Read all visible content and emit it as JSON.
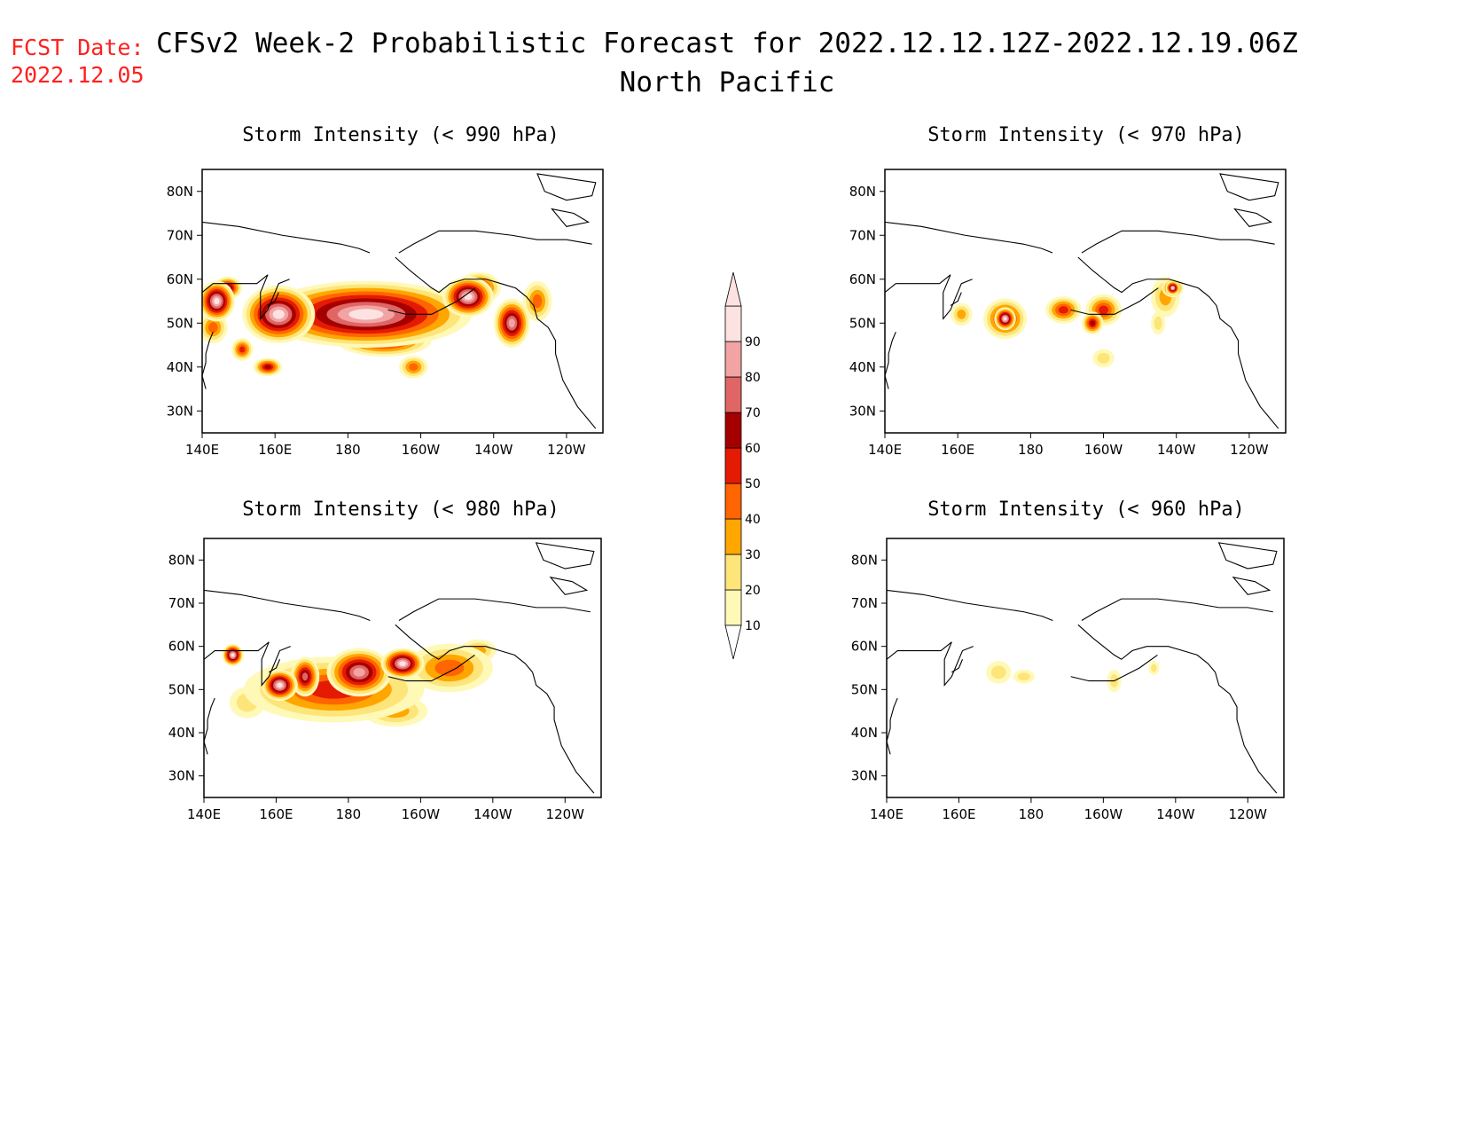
{
  "header": {
    "fcst_date_label": "FCST Date:",
    "fcst_date_value": "2022.12.05",
    "title": "CFSv2 Week-2 Probabilistic Forecast for 2022.12.12.12Z-2022.12.19.06Z",
    "subtitle": "North Pacific",
    "fcst_color": "#ff2020"
  },
  "map_extent": {
    "lon_range": [
      140,
      250
    ],
    "lat_range": [
      25,
      85
    ]
  },
  "axes": {
    "lon_ticks": [
      {
        "lon": 140,
        "label": "140E"
      },
      {
        "lon": 160,
        "label": "160E"
      },
      {
        "lon": 180,
        "label": "180"
      },
      {
        "lon": 200,
        "label": "160W"
      },
      {
        "lon": 220,
        "label": "140W"
      },
      {
        "lon": 240,
        "label": "120W"
      }
    ],
    "lat_ticks": [
      {
        "lat": 30,
        "label": "30N"
      },
      {
        "lat": 40,
        "label": "40N"
      },
      {
        "lat": 50,
        "label": "50N"
      },
      {
        "lat": 60,
        "label": "60N"
      },
      {
        "lat": 70,
        "label": "70N"
      },
      {
        "lat": 80,
        "label": "80N"
      }
    ]
  },
  "colorbar": {
    "levels": [
      {
        "value": "10",
        "color": "#fff9b8"
      },
      {
        "value": "20",
        "color": "#fde57a"
      },
      {
        "value": "30",
        "color": "#ffa600"
      },
      {
        "value": "40",
        "color": "#ff6500"
      },
      {
        "value": "50",
        "color": "#e41a02"
      },
      {
        "value": "60",
        "color": "#a50000"
      },
      {
        "value": "70",
        "color": "#e06666"
      },
      {
        "value": "80",
        "color": "#f2a3a3"
      },
      {
        "value": "90",
        "color": "#fde2e2"
      }
    ]
  },
  "chart_data": [
    {
      "type": "heatmap",
      "title": "Storm Intensity (< 990 hPa)",
      "blobs": [
        {
          "lon": 185,
          "lat": 52,
          "rx": 28,
          "ry": 7,
          "level": 9
        },
        {
          "lon": 161,
          "lat": 52,
          "rx": 9,
          "ry": 6,
          "level": 9
        },
        {
          "lon": 144,
          "lat": 55,
          "rx": 4,
          "ry": 4,
          "level": 9
        },
        {
          "lon": 213,
          "lat": 56,
          "rx": 6,
          "ry": 4,
          "level": 9
        },
        {
          "lon": 225,
          "lat": 50,
          "rx": 4,
          "ry": 5,
          "level": 8
        },
        {
          "lon": 190,
          "lat": 46,
          "rx": 12,
          "ry": 3,
          "level": 6
        },
        {
          "lon": 216,
          "lat": 58,
          "rx": 5,
          "ry": 3,
          "level": 6
        },
        {
          "lon": 147,
          "lat": 58,
          "rx": 3,
          "ry": 2,
          "level": 7
        },
        {
          "lon": 151,
          "lat": 44,
          "rx": 2,
          "ry": 2,
          "level": 5
        },
        {
          "lon": 143,
          "lat": 49,
          "rx": 3,
          "ry": 3,
          "level": 4
        },
        {
          "lon": 198,
          "lat": 40,
          "rx": 3,
          "ry": 2,
          "level": 4
        },
        {
          "lon": 158,
          "lat": 40,
          "rx": 3,
          "ry": 1.5,
          "level": 6
        },
        {
          "lon": 232,
          "lat": 55,
          "rx": 3,
          "ry": 4,
          "level": 4
        }
      ]
    },
    {
      "type": "heatmap",
      "title": "Storm Intensity (< 970 hPa)",
      "blobs": [
        {
          "lon": 173,
          "lat": 51,
          "rx": 5,
          "ry": 4,
          "level": 6
        },
        {
          "lon": 173,
          "lat": 51,
          "rx": 2,
          "ry": 2,
          "level": 9
        },
        {
          "lon": 189,
          "lat": 53,
          "rx": 4,
          "ry": 2.5,
          "level": 5
        },
        {
          "lon": 200,
          "lat": 53,
          "rx": 4,
          "ry": 3,
          "level": 5
        },
        {
          "lon": 197,
          "lat": 50,
          "rx": 2,
          "ry": 2,
          "level": 6
        },
        {
          "lon": 217,
          "lat": 56,
          "rx": 3,
          "ry": 4,
          "level": 3
        },
        {
          "lon": 219,
          "lat": 58,
          "rx": 2,
          "ry": 1.5,
          "level": 7
        },
        {
          "lon": 219,
          "lat": 58,
          "rx": 1,
          "ry": 1,
          "level": 9
        },
        {
          "lon": 161,
          "lat": 52,
          "rx": 2,
          "ry": 2,
          "level": 3
        },
        {
          "lon": 200,
          "lat": 42,
          "rx": 2,
          "ry": 1.5,
          "level": 2
        },
        {
          "lon": 215,
          "lat": 50,
          "rx": 1,
          "ry": 2,
          "level": 2
        }
      ]
    },
    {
      "type": "heatmap",
      "title": "Storm Intensity (< 980 hPa)",
      "blobs": [
        {
          "lon": 176,
          "lat": 50,
          "rx": 24,
          "ry": 7,
          "level": 5
        },
        {
          "lon": 208,
          "lat": 55,
          "rx": 11,
          "ry": 5,
          "level": 4
        },
        {
          "lon": 183,
          "lat": 54,
          "rx": 8,
          "ry": 5,
          "level": 8
        },
        {
          "lon": 161,
          "lat": 51,
          "rx": 4,
          "ry": 3,
          "level": 9
        },
        {
          "lon": 148,
          "lat": 58,
          "rx": 2,
          "ry": 2,
          "level": 9
        },
        {
          "lon": 195,
          "lat": 56,
          "rx": 5,
          "ry": 3,
          "level": 9
        },
        {
          "lon": 193,
          "lat": 45,
          "rx": 8,
          "ry": 3,
          "level": 3
        },
        {
          "lon": 152,
          "lat": 47,
          "rx": 4,
          "ry": 3,
          "level": 2
        },
        {
          "lon": 216,
          "lat": 59,
          "rx": 4,
          "ry": 2,
          "level": 3
        },
        {
          "lon": 168,
          "lat": 53,
          "rx": 3,
          "ry": 4,
          "level": 7
        }
      ]
    },
    {
      "type": "heatmap",
      "title": "Storm Intensity (< 960 hPa)",
      "blobs": [
        {
          "lon": 171,
          "lat": 54,
          "rx": 2.5,
          "ry": 2,
          "level": 2
        },
        {
          "lon": 178,
          "lat": 53,
          "rx": 2,
          "ry": 1,
          "level": 2
        },
        {
          "lon": 203,
          "lat": 52,
          "rx": 1,
          "ry": 2,
          "level": 2
        },
        {
          "lon": 214,
          "lat": 55,
          "rx": 0.5,
          "ry": 1,
          "level": 2
        }
      ]
    }
  ]
}
